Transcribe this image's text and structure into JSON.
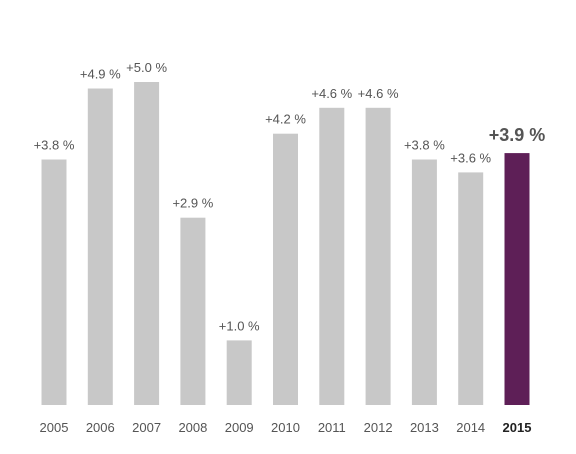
{
  "chart_data": {
    "type": "bar",
    "title": "",
    "xlabel": "",
    "ylabel": "",
    "categories": [
      "2005",
      "2006",
      "2007",
      "2008",
      "2009",
      "2010",
      "2011",
      "2012",
      "2013",
      "2014",
      "2015"
    ],
    "values": [
      3.8,
      4.9,
      5.0,
      2.9,
      1.0,
      4.2,
      4.6,
      4.6,
      3.8,
      3.6,
      3.9
    ],
    "data_labels": [
      "+3.8 %",
      "+4.9 %",
      "+5.0 %",
      "+2.9 %",
      "+1.0 %",
      "+4.2 %",
      "+4.6 %",
      "+4.6 %",
      "+3.8 %",
      "+3.6 %",
      "+3.9 %"
    ],
    "highlight_index": 10,
    "ylim": [
      0,
      5.0
    ],
    "grid": false,
    "colors": {
      "bar": "#c8c8c8",
      "highlight": "#5e1f57",
      "label": "#555555",
      "tick": "#555555",
      "highlight_tick": "#222222"
    }
  }
}
